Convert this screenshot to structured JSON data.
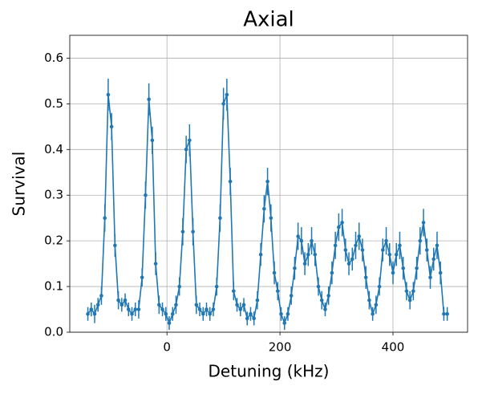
{
  "chart_data": {
    "type": "line",
    "title": "Axial",
    "xlabel": "Detuning (kHz)",
    "ylabel": "Survival",
    "x": [
      -140,
      -134,
      -128,
      -122,
      -116,
      -110,
      -104,
      -98,
      -92,
      -86,
      -80,
      -74,
      -68,
      -62,
      -56,
      -50,
      -44,
      -38,
      -32,
      -26,
      -20,
      -14,
      -8,
      -2,
      4,
      10,
      16,
      22,
      28,
      34,
      40,
      46,
      52,
      58,
      64,
      70,
      76,
      82,
      88,
      94,
      100,
      106,
      112,
      118,
      124,
      130,
      136,
      142,
      148,
      154,
      160,
      166,
      172,
      178,
      184,
      190,
      196,
      202,
      208,
      214,
      220,
      226,
      232,
      238,
      244,
      250,
      256,
      262,
      268,
      274,
      280,
      286,
      292,
      298,
      304,
      310,
      316,
      322,
      328,
      334,
      340,
      346,
      352,
      358,
      364,
      370,
      376,
      382,
      388,
      394,
      400,
      406,
      412,
      418,
      424,
      430,
      436,
      442,
      448,
      454,
      460,
      466,
      472,
      478,
      484,
      490,
      496
    ],
    "values": [
      0.04,
      0.05,
      0.04,
      0.06,
      0.08,
      0.25,
      0.52,
      0.45,
      0.19,
      0.07,
      0.06,
      0.07,
      0.05,
      0.04,
      0.05,
      0.05,
      0.12,
      0.3,
      0.51,
      0.42,
      0.15,
      0.06,
      0.05,
      0.04,
      0.02,
      0.04,
      0.06,
      0.1,
      0.22,
      0.4,
      0.42,
      0.22,
      0.06,
      0.05,
      0.04,
      0.05,
      0.04,
      0.05,
      0.1,
      0.25,
      0.5,
      0.52,
      0.33,
      0.09,
      0.06,
      0.05,
      0.06,
      0.03,
      0.04,
      0.03,
      0.07,
      0.17,
      0.27,
      0.33,
      0.25,
      0.13,
      0.09,
      0.04,
      0.02,
      0.04,
      0.08,
      0.14,
      0.21,
      0.2,
      0.15,
      0.17,
      0.2,
      0.17,
      0.1,
      0.07,
      0.05,
      0.08,
      0.13,
      0.19,
      0.23,
      0.24,
      0.18,
      0.15,
      0.16,
      0.19,
      0.21,
      0.18,
      0.12,
      0.07,
      0.04,
      0.06,
      0.1,
      0.18,
      0.2,
      0.17,
      0.13,
      0.17,
      0.19,
      0.14,
      0.09,
      0.07,
      0.09,
      0.14,
      0.2,
      0.24,
      0.18,
      0.12,
      0.16,
      0.19,
      0.13,
      0.04,
      0.04
    ],
    "errors": [
      0.015,
      0.015,
      0.02,
      0.015,
      0.02,
      0.03,
      0.035,
      0.03,
      0.025,
      0.02,
      0.015,
      0.015,
      0.015,
      0.015,
      0.015,
      0.02,
      0.02,
      0.03,
      0.035,
      0.03,
      0.025,
      0.02,
      0.015,
      0.015,
      0.015,
      0.015,
      0.02,
      0.02,
      0.03,
      0.03,
      0.035,
      0.03,
      0.02,
      0.015,
      0.015,
      0.015,
      0.015,
      0.015,
      0.02,
      0.03,
      0.035,
      0.035,
      0.03,
      0.02,
      0.015,
      0.015,
      0.015,
      0.015,
      0.015,
      0.015,
      0.02,
      0.025,
      0.03,
      0.03,
      0.03,
      0.025,
      0.02,
      0.015,
      0.015,
      0.015,
      0.02,
      0.025,
      0.03,
      0.03,
      0.025,
      0.025,
      0.03,
      0.025,
      0.02,
      0.02,
      0.015,
      0.02,
      0.025,
      0.03,
      0.03,
      0.03,
      0.025,
      0.025,
      0.025,
      0.03,
      0.03,
      0.025,
      0.025,
      0.02,
      0.015,
      0.02,
      0.02,
      0.025,
      0.03,
      0.025,
      0.025,
      0.025,
      0.03,
      0.025,
      0.02,
      0.02,
      0.02,
      0.025,
      0.03,
      0.03,
      0.025,
      0.025,
      0.025,
      0.03,
      0.025,
      0.015,
      0.015
    ],
    "color": "#1f77b4",
    "xlim": [
      -172,
      532
    ],
    "ylim": [
      0,
      0.65
    ],
    "xticks": [
      0,
      200,
      400
    ],
    "yticks": [
      {
        "value": 0,
        "label": "0.0"
      },
      0.1,
      0.2,
      0.3,
      0.4,
      0.5,
      0.6
    ],
    "grid": true
  }
}
